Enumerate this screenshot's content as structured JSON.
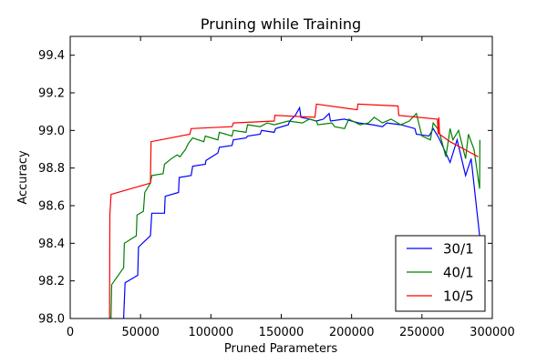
{
  "chart_data": {
    "type": "line",
    "title": "Pruning while Training",
    "xlabel": "Pruned Parameters",
    "ylabel": "Accuracy",
    "xlim": [
      0,
      300000
    ],
    "ylim": [
      98.0,
      99.5
    ],
    "xticks": [
      0,
      50000,
      100000,
      150000,
      200000,
      250000,
      300000
    ],
    "xtick_labels": [
      "0",
      "50000",
      "100000",
      "150000",
      "200000",
      "250000",
      "300000"
    ],
    "yticks": [
      98.0,
      98.2,
      98.4,
      98.6,
      98.8,
      99.0,
      99.2,
      99.4
    ],
    "ytick_labels": [
      "98.0",
      "98.2",
      "98.4",
      "98.6",
      "98.8",
      "99.0",
      "99.2",
      "99.4"
    ],
    "grid": false,
    "legend_position": "bottom-right",
    "series": [
      {
        "name": "30/1",
        "color": "#0000ff",
        "points": [
          [
            38000,
            98.0
          ],
          [
            39000,
            98.19
          ],
          [
            48000,
            98.23
          ],
          [
            48500,
            98.38
          ],
          [
            57000,
            98.44
          ],
          [
            58000,
            98.56
          ],
          [
            67000,
            98.56
          ],
          [
            67500,
            98.65
          ],
          [
            77000,
            98.67
          ],
          [
            77500,
            98.75
          ],
          [
            86000,
            98.76
          ],
          [
            87000,
            98.81
          ],
          [
            96000,
            98.82
          ],
          [
            96500,
            98.84
          ],
          [
            105000,
            98.88
          ],
          [
            106000,
            98.91
          ],
          [
            115000,
            98.92
          ],
          [
            116000,
            98.95
          ],
          [
            125000,
            98.96
          ],
          [
            126000,
            98.97
          ],
          [
            135000,
            98.98
          ],
          [
            136000,
            99.0
          ],
          [
            145000,
            98.99
          ],
          [
            146000,
            99.01
          ],
          [
            155000,
            99.03
          ],
          [
            156000,
            99.05
          ],
          [
            160000,
            99.08
          ],
          [
            163000,
            99.12
          ],
          [
            164000,
            99.07
          ],
          [
            170000,
            99.06
          ],
          [
            175000,
            99.05
          ],
          [
            180000,
            99.06
          ],
          [
            184000,
            99.09
          ],
          [
            185000,
            99.05
          ],
          [
            195000,
            99.06
          ],
          [
            205000,
            99.04
          ],
          [
            215000,
            99.03
          ],
          [
            222000,
            99.02
          ],
          [
            225000,
            99.04
          ],
          [
            235000,
            99.03
          ],
          [
            245000,
            99.01
          ],
          [
            246000,
            98.98
          ],
          [
            255000,
            98.97
          ],
          [
            258000,
            99.01
          ],
          [
            262000,
            98.96
          ],
          [
            270000,
            98.83
          ],
          [
            275000,
            98.95
          ],
          [
            281000,
            98.76
          ],
          [
            285000,
            98.85
          ],
          [
            291000,
            98.44
          ]
        ]
      },
      {
        "name": "40/1",
        "color": "#008000",
        "points": [
          [
            29000,
            98.0
          ],
          [
            29500,
            98.18
          ],
          [
            38000,
            98.27
          ],
          [
            38500,
            98.4
          ],
          [
            47000,
            98.44
          ],
          [
            47500,
            98.55
          ],
          [
            52000,
            98.57
          ],
          [
            53000,
            98.67
          ],
          [
            57000,
            98.72
          ],
          [
            58000,
            98.76
          ],
          [
            66000,
            98.77
          ],
          [
            67000,
            98.82
          ],
          [
            72000,
            98.85
          ],
          [
            76000,
            98.87
          ],
          [
            78000,
            98.86
          ],
          [
            82000,
            98.9
          ],
          [
            84000,
            98.93
          ],
          [
            87000,
            98.96
          ],
          [
            95000,
            98.94
          ],
          [
            96000,
            98.97
          ],
          [
            105000,
            98.95
          ],
          [
            106000,
            98.99
          ],
          [
            115000,
            98.97
          ],
          [
            116000,
            99.0
          ],
          [
            125000,
            98.99
          ],
          [
            126000,
            99.03
          ],
          [
            135000,
            99.02
          ],
          [
            140000,
            99.04
          ],
          [
            145000,
            99.03
          ],
          [
            155000,
            99.05
          ],
          [
            165000,
            99.04
          ],
          [
            170000,
            99.06
          ],
          [
            175000,
            99.05
          ],
          [
            176000,
            99.03
          ],
          [
            186000,
            99.04
          ],
          [
            188000,
            99.02
          ],
          [
            195000,
            99.01
          ],
          [
            198000,
            99.06
          ],
          [
            206000,
            99.03
          ],
          [
            212000,
            99.04
          ],
          [
            216000,
            99.07
          ],
          [
            222000,
            99.04
          ],
          [
            228000,
            99.06
          ],
          [
            235000,
            99.03
          ],
          [
            241000,
            99.05
          ],
          [
            246000,
            99.09
          ],
          [
            250000,
            98.97
          ],
          [
            256000,
            98.95
          ],
          [
            258000,
            99.04
          ],
          [
            262000,
            99.0
          ],
          [
            267000,
            98.86
          ],
          [
            270000,
            99.01
          ],
          [
            272000,
            98.95
          ],
          [
            276000,
            99.0
          ],
          [
            281000,
            98.85
          ],
          [
            283000,
            98.98
          ],
          [
            287000,
            98.9
          ],
          [
            291000,
            98.69
          ],
          [
            291200,
            98.95
          ]
        ]
      },
      {
        "name": "10/5",
        "color": "#ff0000",
        "points": [
          [
            28000,
            98.0
          ],
          [
            28200,
            98.55
          ],
          [
            29000,
            98.66
          ],
          [
            57000,
            98.72
          ],
          [
            57500,
            98.94
          ],
          [
            85000,
            98.98
          ],
          [
            86000,
            99.01
          ],
          [
            115000,
            99.02
          ],
          [
            116000,
            99.04
          ],
          [
            145000,
            99.05
          ],
          [
            145500,
            99.08
          ],
          [
            174000,
            99.07
          ],
          [
            175000,
            99.14
          ],
          [
            204000,
            99.11
          ],
          [
            204500,
            99.14
          ],
          [
            233000,
            99.13
          ],
          [
            233500,
            99.08
          ],
          [
            261000,
            99.06
          ],
          [
            261500,
            98.98
          ],
          [
            262000,
            99.07
          ],
          [
            262500,
            98.98
          ],
          [
            270000,
            98.94
          ],
          [
            280000,
            98.9
          ],
          [
            290000,
            98.86
          ]
        ]
      }
    ]
  }
}
